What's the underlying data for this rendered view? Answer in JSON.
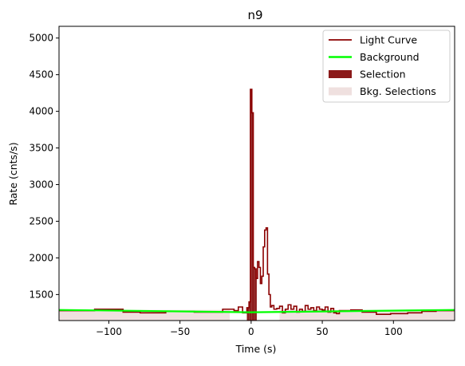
{
  "chart_data": {
    "type": "line",
    "title": "n9",
    "xlabel": "Time (s)",
    "ylabel": "Rate (cnts/s)",
    "xlim": [
      -135,
      143
    ],
    "ylim": [
      1145,
      5160
    ],
    "x_ticks": [
      -100,
      -50,
      0,
      50,
      100
    ],
    "x_tick_labels": [
      "−100",
      "−50",
      "0",
      "50",
      "100"
    ],
    "y_ticks": [
      1500,
      2000,
      2500,
      3000,
      3500,
      4000,
      4500,
      5000
    ],
    "y_tick_labels": [
      "1500",
      "2000",
      "2500",
      "3000",
      "3500",
      "4000",
      "4500",
      "5000"
    ],
    "grid": false,
    "legend": {
      "placement": "top-right",
      "entries": [
        {
          "label": "Light Curve",
          "kind": "line",
          "color": "#8b0000"
        },
        {
          "label": "Background",
          "kind": "line",
          "color": "#00ff00"
        },
        {
          "label": "Selection",
          "kind": "patch",
          "color": "#8b1a1a"
        },
        {
          "label": "Bkg. Selections",
          "kind": "patch",
          "color": "#efe0df"
        }
      ]
    },
    "light_curve": {
      "color": "#8b0000",
      "step": "post",
      "x": [
        -135,
        -110,
        -90,
        -78,
        -60,
        -40,
        -20,
        -12,
        -9,
        -6,
        -3,
        -1.5,
        -0.5,
        0.5,
        1.5,
        2.5,
        3.5,
        4.5,
        5.5,
        6.5,
        7.5,
        8.5,
        9.5,
        10.5,
        11.5,
        12.5,
        13.5,
        14.5,
        16,
        18,
        20,
        22,
        24,
        26,
        28,
        30,
        32,
        34,
        36,
        38,
        40,
        42,
        44,
        46,
        48,
        50,
        52,
        54,
        56,
        58,
        60,
        62,
        70,
        78,
        88,
        98,
        110,
        120,
        130,
        143
      ],
      "y": [
        1280,
        1300,
        1260,
        1250,
        1270,
        1260,
        1300,
        1280,
        1330,
        1250,
        1320,
        1400,
        4300,
        3980,
        1870,
        1850,
        1720,
        1950,
        1870,
        1650,
        1750,
        2150,
        2380,
        2410,
        1780,
        1500,
        1330,
        1350,
        1300,
        1310,
        1340,
        1250,
        1300,
        1360,
        1300,
        1340,
        1260,
        1300,
        1270,
        1350,
        1300,
        1320,
        1280,
        1330,
        1300,
        1290,
        1330,
        1260,
        1310,
        1250,
        1240,
        1280,
        1290,
        1260,
        1230,
        1240,
        1250,
        1270,
        1280,
        1280
      ]
    },
    "background": {
      "color": "#00ff00",
      "x": [
        -135,
        0,
        143
      ],
      "y": [
        1290,
        1258,
        1290
      ]
    },
    "selection": {
      "color": "#8b1a1a",
      "x_range": [
        -3,
        4
      ]
    },
    "bkg_selection": {
      "color": "#efe0df",
      "ranges": [
        [
          -135,
          -15
        ],
        [
          20,
          143
        ]
      ],
      "level": 1290
    }
  }
}
